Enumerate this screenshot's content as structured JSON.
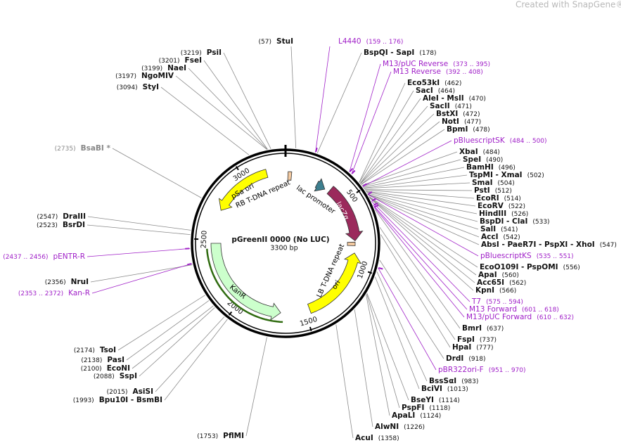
{
  "header": {
    "watermark": "Created with SnapGene®"
  },
  "map": {
    "title": "pGreenII 0000 (No LUC)",
    "length_label": "3300 bp",
    "ring_ticks": [
      500,
      1000,
      1500,
      2000,
      2500,
      3000
    ]
  },
  "features": [
    {
      "name": "pSa ori",
      "color": "#ffff00"
    },
    {
      "name": "RB T-DNA repeat",
      "color": "#f2c9a0"
    },
    {
      "name": "lac promoter",
      "color": "#3d7f8f"
    },
    {
      "name": "lacZα",
      "color": "#9b2a5c"
    },
    {
      "name": "LB T-DNA repeat",
      "color": "#f2c9a0"
    },
    {
      "name": "ori",
      "color": "#ffff00"
    },
    {
      "name": "KanR",
      "color": "#ccffcc"
    }
  ],
  "sites": [
    {
      "name": "StuI",
      "position": "(57)"
    },
    {
      "name": "BspQI - SapI",
      "position": "(178)"
    },
    {
      "name": "Eco53kI",
      "position": "(462)"
    },
    {
      "name": "SacI",
      "position": "(464)"
    },
    {
      "name": "AleI - MslI",
      "position": "(470)"
    },
    {
      "name": "SacII",
      "position": "(471)"
    },
    {
      "name": "BstXI",
      "position": "(472)"
    },
    {
      "name": "NotI",
      "position": "(477)"
    },
    {
      "name": "BpmI",
      "position": "(478)"
    },
    {
      "name": "XbaI",
      "position": "(484)"
    },
    {
      "name": "SpeI",
      "position": "(490)"
    },
    {
      "name": "BamHI",
      "position": "(496)"
    },
    {
      "name": "TspMI - XmaI",
      "position": "(502)"
    },
    {
      "name": "SmaI",
      "position": "(504)"
    },
    {
      "name": "PstI",
      "position": "(512)"
    },
    {
      "name": "EcoRI",
      "position": "(514)"
    },
    {
      "name": "EcoRV",
      "position": "(522)"
    },
    {
      "name": "HindIII",
      "position": "(526)"
    },
    {
      "name": "BspDI - ClaI",
      "position": "(533)"
    },
    {
      "name": "SalI",
      "position": "(541)"
    },
    {
      "name": "AccI",
      "position": "(542)"
    },
    {
      "name": "AbsI - PaeR7I - PspXI - XhoI",
      "position": "(547)"
    },
    {
      "name": "EcoO109I - PspOMI",
      "position": "(556)"
    },
    {
      "name": "ApaI",
      "position": "(560)"
    },
    {
      "name": "Acc65I",
      "position": "(562)"
    },
    {
      "name": "KpnI",
      "position": "(566)"
    },
    {
      "name": "BmrI",
      "position": "(637)"
    },
    {
      "name": "FspI",
      "position": "(737)"
    },
    {
      "name": "HpaI",
      "position": "(777)"
    },
    {
      "name": "DrdI",
      "position": "(918)"
    },
    {
      "name": "BssSαI",
      "position": "(983)"
    },
    {
      "name": "BciVI",
      "position": "(1013)"
    },
    {
      "name": "BseYI",
      "position": "(1114)"
    },
    {
      "name": "PspFI",
      "position": "(1118)"
    },
    {
      "name": "ApaLI",
      "position": "(1124)"
    },
    {
      "name": "AlwNI",
      "position": "(1226)"
    },
    {
      "name": "AcuI",
      "position": "(1358)"
    },
    {
      "name": "PflMI",
      "position": "(1753)"
    },
    {
      "name": "PsiI",
      "position": "(3219)"
    },
    {
      "name": "FseI",
      "position": "(3201)"
    },
    {
      "name": "NaeI",
      "position": "(3199)"
    },
    {
      "name": "NgoMIV",
      "position": "(3197)"
    },
    {
      "name": "StyI",
      "position": "(3094)"
    },
    {
      "name": "BsaBI *",
      "position": "(2735)",
      "color": "#888888"
    },
    {
      "name": "DraIII",
      "position": "(2547)"
    },
    {
      "name": "BsrDI",
      "position": "(2523)"
    },
    {
      "name": "NruI",
      "position": "(2356)"
    },
    {
      "name": "TsoI",
      "position": "(2174)"
    },
    {
      "name": "PasI",
      "position": "(2138)"
    },
    {
      "name": "EcoNI",
      "position": "(2100)"
    },
    {
      "name": "SspI",
      "position": "(2088)"
    },
    {
      "name": "AsiSI",
      "position": "(2015)"
    },
    {
      "name": "Bpu10I - BsmBI",
      "position": "(1993)"
    }
  ],
  "primer_color": "#a020c8",
  "primers": [
    {
      "name": "L4440",
      "range": "(159 .. 176)"
    },
    {
      "name": "M13/pUC Reverse",
      "range": "(373 .. 395)"
    },
    {
      "name": "M13 Reverse",
      "range": "(392 .. 408)"
    },
    {
      "name": "pBluescriptSK",
      "range": "(484 .. 500)"
    },
    {
      "name": "pBluescriptKS",
      "range": "(535 .. 551)"
    },
    {
      "name": "T7",
      "range": "(575 .. 594)"
    },
    {
      "name": "M13 Forward",
      "range": "(601 .. 618)"
    },
    {
      "name": "M13/pUC Forward",
      "range": "(610 .. 632)"
    },
    {
      "name": "pBR322ori-F",
      "range": "(951 .. 970)"
    },
    {
      "name": "pENTR-R",
      "range": "(2437 .. 2456)"
    },
    {
      "name": "Kan-R",
      "range": "(2353 .. 2372)"
    }
  ]
}
